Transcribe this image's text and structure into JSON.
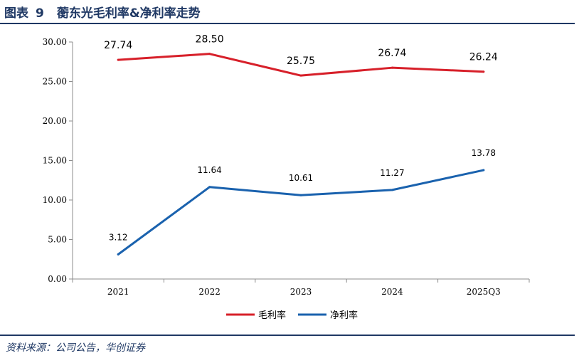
{
  "header": {
    "figure_label": "图表",
    "figure_number": "9",
    "title": "蘅东光毛利率&净利率走势"
  },
  "source_note": "资料来源：公司公告，华创证券",
  "chart_data": {
    "type": "line",
    "title": "蘅东光毛利率&净利率走势",
    "xlabel": "",
    "ylabel": "",
    "categories": [
      "2021",
      "2022",
      "2023",
      "2024",
      "2025Q3"
    ],
    "ylim": [
      0,
      30
    ],
    "yticks": [
      0,
      5,
      10,
      15,
      20,
      25,
      30
    ],
    "ytick_labels": [
      "0.00",
      "5.00",
      "10.00",
      "15.00",
      "20.00",
      "25.00",
      "30.00"
    ],
    "grid": false,
    "legend_position": "bottom-center",
    "series": [
      {
        "name": "毛利率",
        "color": "#D7202A",
        "values": [
          27.74,
          28.5,
          25.75,
          26.74,
          26.24
        ],
        "labels": [
          "27.74",
          "28.50",
          "25.75",
          "26.74",
          "26.24"
        ]
      },
      {
        "name": "净利率",
        "color": "#1A62AE",
        "values": [
          3.12,
          11.64,
          10.61,
          11.27,
          13.78
        ],
        "labels": [
          "3.12",
          "11.64",
          "10.61",
          "11.27",
          "13.78"
        ]
      }
    ]
  }
}
